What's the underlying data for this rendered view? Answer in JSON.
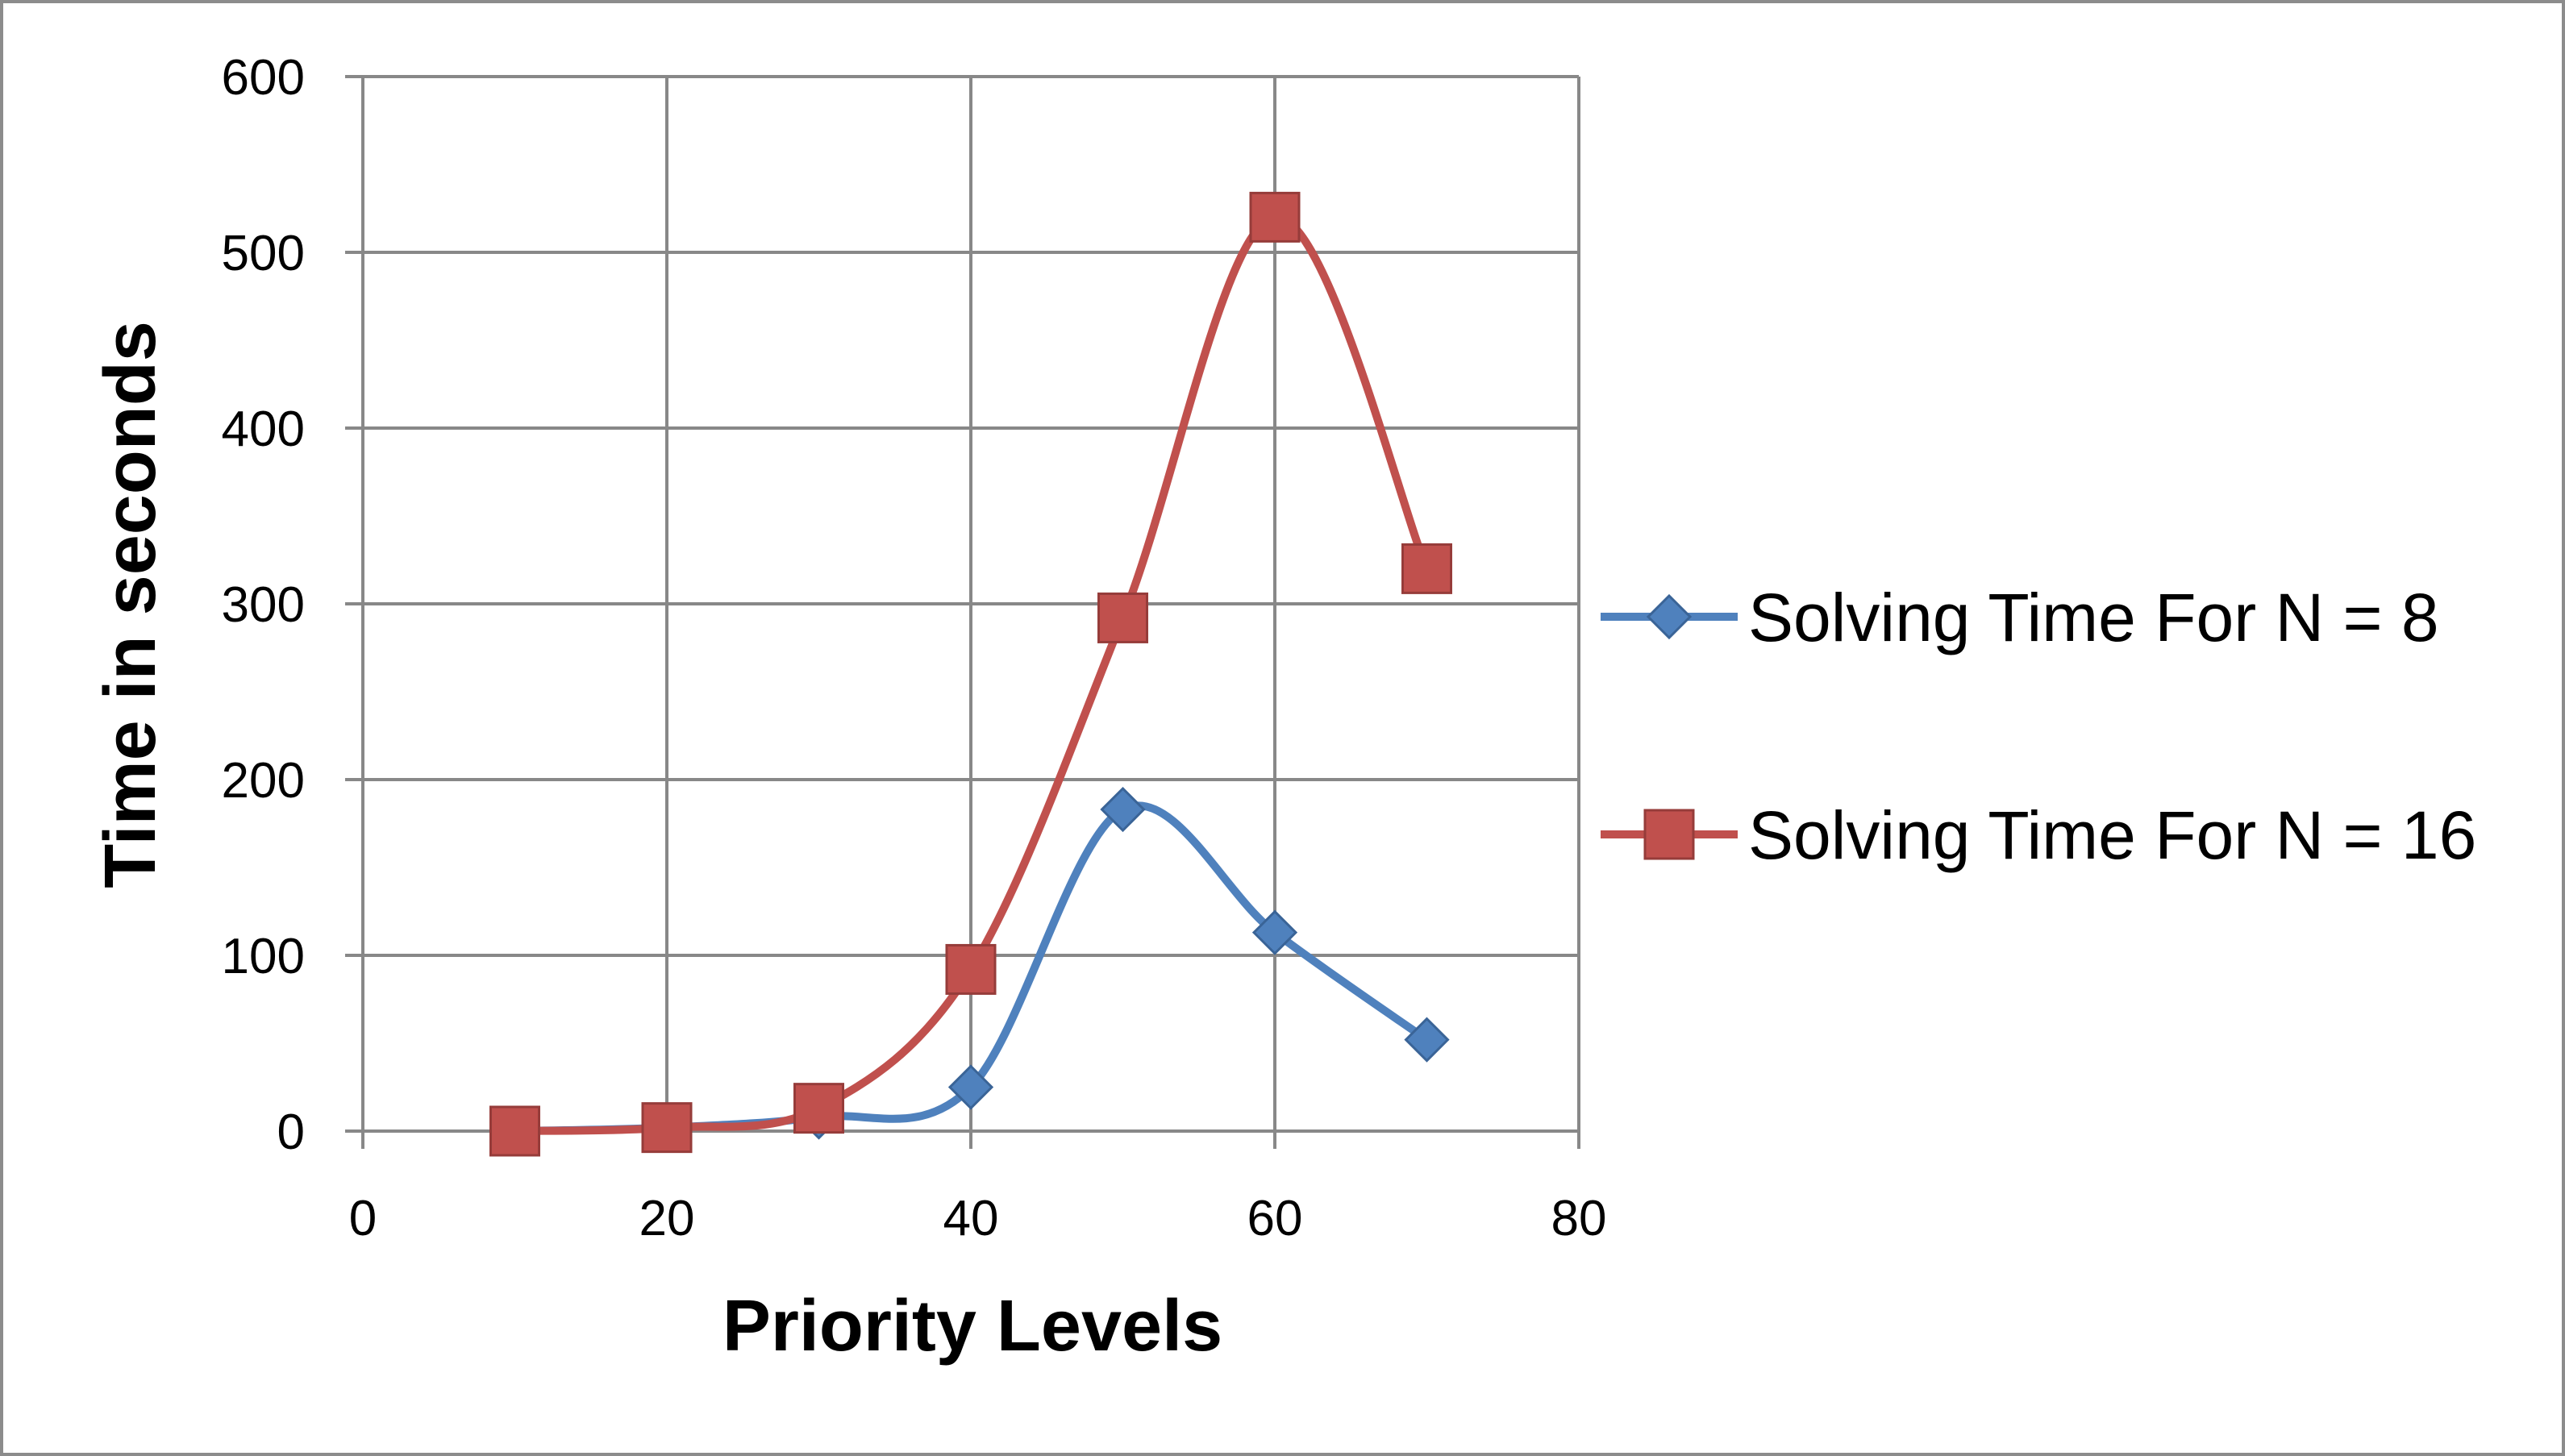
{
  "chart_data": {
    "type": "line",
    "xlabel": "Priority Levels",
    "ylabel": "Time in seconds",
    "xlim": [
      0,
      80
    ],
    "ylim": [
      0,
      600
    ],
    "xticks": [
      "0",
      "20",
      "40",
      "60",
      "80"
    ],
    "yticks": [
      "0",
      "100",
      "200",
      "300",
      "400",
      "500",
      "600"
    ],
    "grid": true,
    "smooth": true,
    "legend_position": "right",
    "series": [
      {
        "name": "Solving Time For N = 8",
        "color": "#4f81bd",
        "marker": "diamond",
        "x": [
          10,
          20,
          30,
          40,
          50,
          60,
          70
        ],
        "y": [
          0,
          2,
          8,
          25,
          183,
          113,
          52
        ]
      },
      {
        "name": "Solving Time For N = 16",
        "color": "#c0504d",
        "marker": "square",
        "x": [
          10,
          20,
          30,
          40,
          50,
          60,
          70
        ],
        "y": [
          0,
          2,
          13,
          92,
          292,
          520,
          320
        ]
      }
    ]
  }
}
